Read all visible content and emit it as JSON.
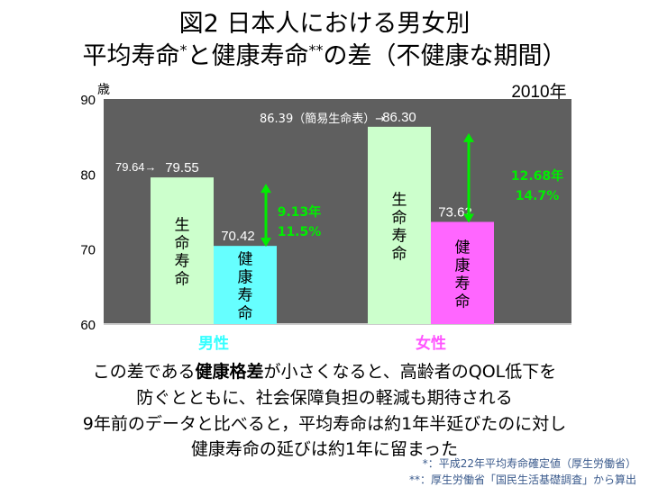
{
  "title": {
    "line1": "図2  日本人における男女別",
    "line2_a": "平均寿命",
    "line2_star1": "*",
    "line2_b": "と健康寿命",
    "line2_star2": "**",
    "line2_c": "の差（不健康な期間）"
  },
  "chart_data": {
    "type": "bar",
    "year_label": "2010年",
    "yunit": "歳",
    "ylim": [
      60,
      90
    ],
    "yticks": [
      60,
      70,
      80,
      90
    ],
    "grid": false,
    "categories": [
      "男性",
      "女性"
    ],
    "category_colors": [
      "#33ffff",
      "#ff55ff"
    ],
    "series": [
      {
        "name": "生命寿命",
        "values": [
          79.55,
          86.3
        ],
        "colors": [
          "#ccffcc",
          "#ccffcc"
        ]
      },
      {
        "name": "健康寿命",
        "values": [
          70.42,
          73.62
        ],
        "colors": [
          "#66ffff",
          "#ff66ff"
        ]
      }
    ],
    "value_labels": [
      [
        "79.55",
        "86.30"
      ],
      [
        "70.42",
        "73.62"
      ]
    ],
    "annotations": {
      "male_ref": "79.64→",
      "female_ref": "86.39（簡易生命表）→"
    },
    "gaps": [
      {
        "years": "9.13年",
        "pct": "11.5%"
      },
      {
        "years": "12.68年",
        "pct": "14.7%"
      }
    ],
    "background": "#5f5f5f",
    "gap_color": "#00ee00"
  },
  "caption": {
    "l1a": "この差である",
    "l1b": "健康格差",
    "l1c": "が小さくなると、高齢者のQOL低下を",
    "l2": "防ぐとともに、社会保障負担の軽減も期待される",
    "l3": "9年前のデータと比べると，平均寿命は約1年半延びたのに対し",
    "l4": "健康寿命の延びは約1年に留まった"
  },
  "notes": {
    "n1": "*：平成22年平均寿命確定値（厚生労働省）",
    "n2": "**：厚生労働省「国民生活基礎調査」から算出"
  }
}
